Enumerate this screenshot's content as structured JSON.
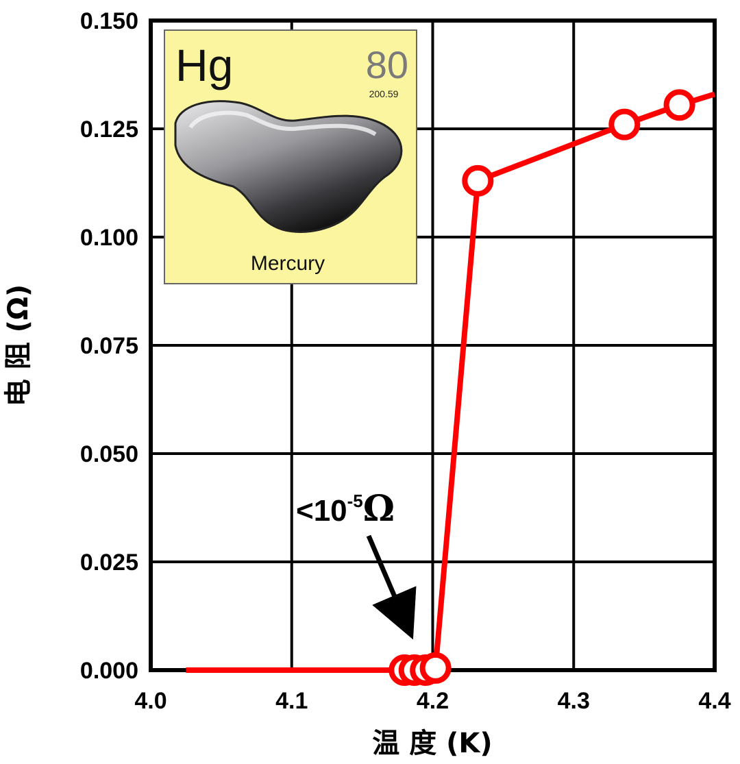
{
  "chart_data": {
    "type": "line",
    "xlabel": "温 度 (K)",
    "ylabel": "电 阻 (Ω)",
    "xlim": [
      4.0,
      4.4
    ],
    "ylim": [
      0.0,
      0.15
    ],
    "x_ticks": [
      "4.0",
      "4.1",
      "4.2",
      "4.3",
      "4.4"
    ],
    "y_ticks": [
      "0.000",
      "0.025",
      "0.050",
      "0.075",
      "0.100",
      "0.125",
      "0.150"
    ],
    "grid": true,
    "series": [
      {
        "color": "#ff0000",
        "marker": "open-circle",
        "points": [
          {
            "x": 4.18,
            "y": 0.0
          },
          {
            "x": 4.187,
            "y": 0.0
          },
          {
            "x": 4.195,
            "y": 0.0
          },
          {
            "x": 4.202,
            "y": 0.0005
          },
          {
            "x": 4.232,
            "y": 0.113
          },
          {
            "x": 4.336,
            "y": 0.126
          },
          {
            "x": 4.375,
            "y": 0.1305
          }
        ],
        "line_x": [
          4.025,
          4.18,
          4.187,
          4.195,
          4.202,
          4.232,
          4.336,
          4.375,
          4.4
        ],
        "line_y": [
          0.0,
          0.0,
          0.0,
          0.0,
          0.0005,
          0.113,
          0.126,
          0.1305,
          0.133
        ]
      }
    ],
    "annotation": {
      "base": "<10",
      "sup": "-5",
      "unit": "Ω",
      "arrow_to": {
        "x": 4.185,
        "y": 0.006
      }
    }
  },
  "inset": {
    "symbol": "Hg",
    "number": "80",
    "mass": "200.59",
    "name": "Mercury",
    "bg_color": "#fbf5a0"
  }
}
